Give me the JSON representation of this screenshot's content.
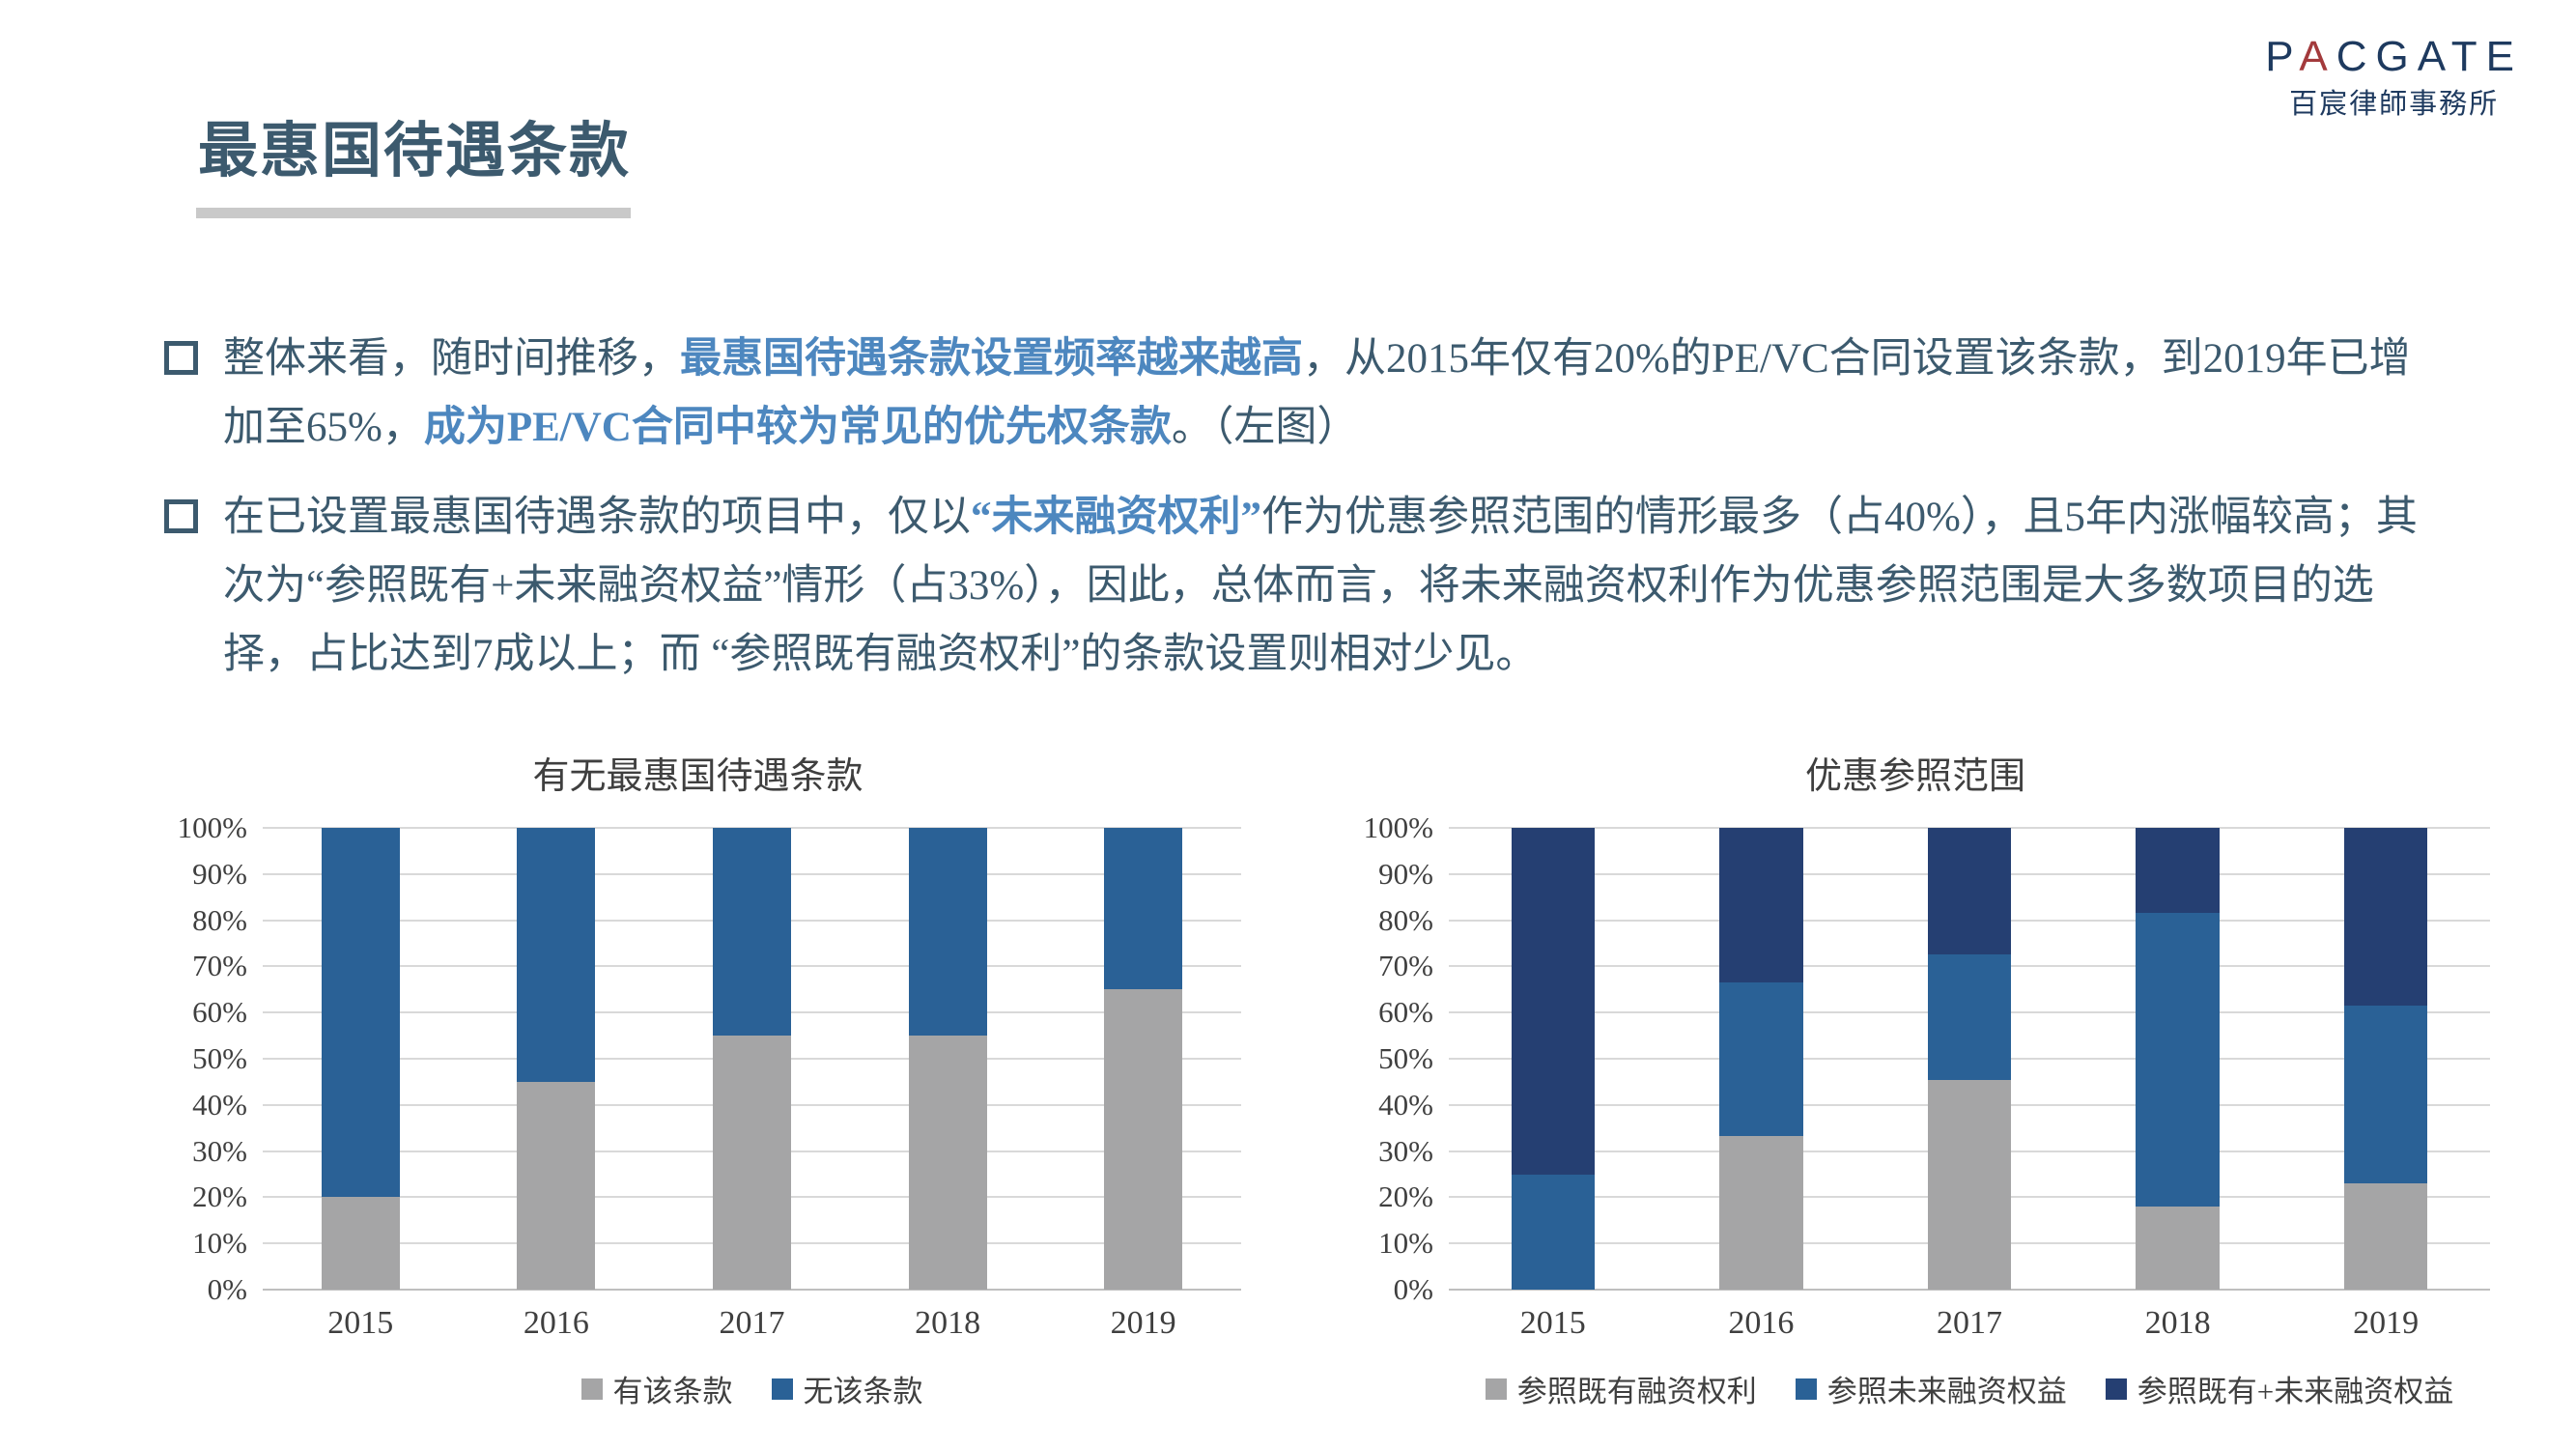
{
  "logo": {
    "name_prefix": "P",
    "name_accent": "A",
    "name_suffix": "CGATE",
    "subtitle": "百宸律師事務所"
  },
  "slide": {
    "title": "最惠国待遇条款"
  },
  "bullets": [
    {
      "segments": [
        {
          "text": "整体来看，随时间推移，",
          "style": "normal"
        },
        {
          "text": "最惠国待遇条款设置频率越来越高",
          "style": "highlight"
        },
        {
          "text": "，从2015年仅有20%的PE/VC合同设置该条款，到2019年已增加至65%，",
          "style": "normal"
        },
        {
          "text": "成为PE/VC合同中较为常见的优先权条款",
          "style": "highlight"
        },
        {
          "text": "。（左图）",
          "style": "normal"
        }
      ]
    },
    {
      "segments": [
        {
          "text": "在已设置最惠国待遇条款的项目中，仅以",
          "style": "normal"
        },
        {
          "text": "“未来融资权利”",
          "style": "highlight"
        },
        {
          "text": "作为优惠参照范围的情形最多（占40%），且5年内涨幅较高；其次为“参照既有+未来融资权益”情形（占33%），因此，总体而言，将未来融资权利作为优惠参照范围是大多数项目的选择，占比达到7成以上；而 “参照既有融资权利”的条款设置则相对少见。",
          "style": "normal"
        }
      ]
    }
  ],
  "chart_data": [
    {
      "type": "bar",
      "stacked": true,
      "title": "有无最惠国待遇条款",
      "categories": [
        "2015",
        "2016",
        "2017",
        "2018",
        "2019"
      ],
      "series": [
        {
          "name": "有该条款",
          "color": "#A5A5A6",
          "values": [
            20,
            45,
            55,
            55,
            65
          ]
        },
        {
          "name": "无该条款",
          "color": "#2A6196",
          "values": [
            80,
            55,
            45,
            45,
            35
          ]
        }
      ],
      "xlabel": "",
      "ylabel": "",
      "ylim": [
        0,
        100
      ],
      "y_ticks": [
        "0%",
        "10%",
        "20%",
        "30%",
        "40%",
        "50%",
        "60%",
        "70%",
        "80%",
        "90%",
        "100%"
      ],
      "grid": true,
      "legend_position": "bottom",
      "unit": "percent"
    },
    {
      "type": "bar",
      "stacked": true,
      "title": "优惠参照范围",
      "categories": [
        "2015",
        "2016",
        "2017",
        "2018",
        "2019"
      ],
      "series": [
        {
          "name": "参照既有融资权利",
          "color": "#A5A5A6",
          "values": [
            0,
            33.3,
            45.5,
            18,
            23
          ]
        },
        {
          "name": "参照未来融资权益",
          "color": "#2A6196",
          "values": [
            25,
            33.3,
            27,
            63.5,
            38.5
          ]
        },
        {
          "name": "参照既有+未来融资权益",
          "color": "#253F72",
          "values": [
            75,
            33.4,
            27.5,
            18.5,
            38.5
          ]
        }
      ],
      "xlabel": "",
      "ylabel": "",
      "ylim": [
        0,
        100
      ],
      "y_ticks": [
        "0%",
        "10%",
        "20%",
        "30%",
        "40%",
        "50%",
        "60%",
        "70%",
        "80%",
        "90%",
        "100%"
      ],
      "grid": true,
      "legend_position": "bottom",
      "unit": "percent"
    }
  ],
  "colors": {
    "body_text": "#3C5A6E",
    "highlight_text": "#4D87BF",
    "bar_gray": "#A5A5A6",
    "bar_blue": "#2A6196",
    "bar_navy": "#253F72",
    "axis_text": "#3F3F3F",
    "gridline": "#D9D9D9",
    "title_underline": "#C9C9C9",
    "logo_navy": "#1E3A5F",
    "logo_red": "#A33A3C"
  }
}
